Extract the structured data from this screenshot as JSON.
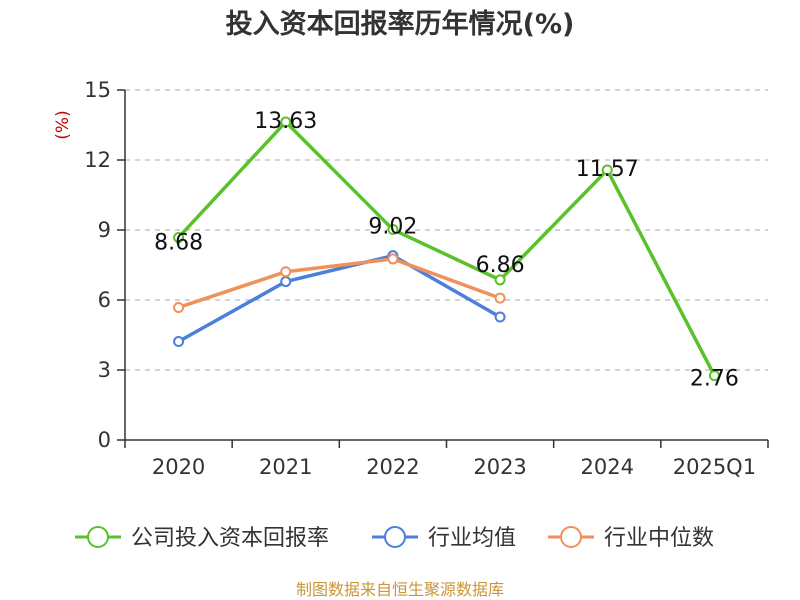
{
  "chart_data": {
    "type": "line",
    "title": "投入资本回报率历年情况(%)",
    "ylabel": "(%)",
    "xlabel": "",
    "categories": [
      "2020",
      "2021",
      "2022",
      "2023",
      "2024",
      "2025Q1"
    ],
    "ylim": [
      0,
      15
    ],
    "yticks": [
      0,
      3,
      6,
      9,
      12,
      15
    ],
    "grid": true,
    "legend_position": "bottom",
    "series": [
      {
        "name": "公司投入资本回报率",
        "color": "#5ac12b",
        "values": [
          8.68,
          13.63,
          9.02,
          6.86,
          11.57,
          2.76
        ],
        "labels": [
          "8.68",
          "13.63",
          "9.02",
          "6.86",
          "11.57",
          "2.76"
        ]
      },
      {
        "name": "行业均值",
        "color": "#4a7fdc",
        "values": [
          4.22,
          6.79,
          7.9,
          5.27,
          null,
          null
        ]
      },
      {
        "name": "行业中位数",
        "color": "#f0905a",
        "values": [
          5.68,
          7.21,
          7.76,
          6.08,
          null,
          null
        ]
      }
    ],
    "source": "制图数据来自恒生聚源数据库"
  }
}
